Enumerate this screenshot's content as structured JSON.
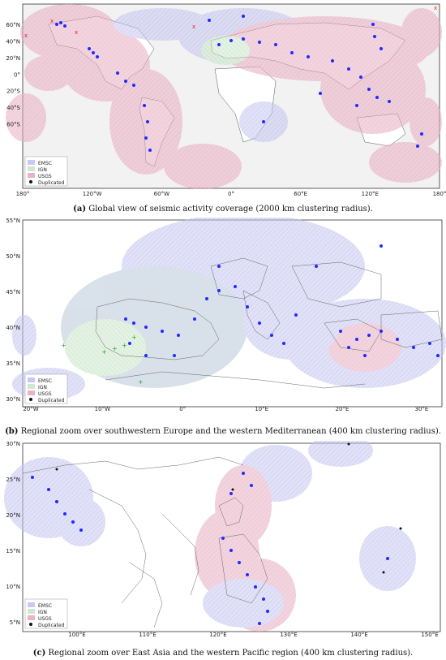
{
  "figure": {
    "panels": [
      {
        "id": "a",
        "caption_prefix": "(a)",
        "caption_text": " Global view of seismic activity coverage (2000 km clustering radius).",
        "xticks": [
          "180°",
          "120°W",
          "60°W",
          "0°",
          "60°E",
          "120°E",
          "180°"
        ],
        "yticks": [
          "60°N",
          "40°N",
          "20°N",
          "0°",
          "20°S",
          "40°S",
          "60°S"
        ],
        "legend": [
          "EMSC",
          "IGN",
          "USGS",
          "Duplicated"
        ]
      },
      {
        "id": "b",
        "caption_prefix": "(b)",
        "caption_text": " Regional zoom over southwestern Europe and the western Mediterranean (400 km clustering radius).",
        "xticks": [
          "20°W",
          "10°W",
          "0°",
          "10°E",
          "20°E",
          "30°E"
        ],
        "yticks": [
          "55°N",
          "50°N",
          "45°N",
          "40°N",
          "35°N",
          "30°N"
        ],
        "legend": [
          "EMSC",
          "IGN",
          "USGS",
          "Duplicated"
        ]
      },
      {
        "id": "c",
        "caption_prefix": "(c)",
        "caption_text": " Regional zoom over East Asia and the western Pacific region (400 km clustering radius).",
        "xticks": [
          "100°E",
          "110°E",
          "120°E",
          "130°E",
          "140°E",
          "150°E"
        ],
        "yticks": [
          "30°N",
          "25°N",
          "20°N",
          "15°N",
          "10°N",
          "5°N"
        ],
        "legend": [
          "EMSC",
          "IGN",
          "USGS",
          "Duplicated"
        ]
      }
    ],
    "colors": {
      "emsc": "#6f6fe6",
      "ign": "#7fc77f",
      "usgs": "#e67f99",
      "event_point": "#1f2bff",
      "ign_marker": "#2ca02c",
      "usgs_marker": "#e8202a",
      "duplicated": "#111111",
      "land": "#ffffff",
      "ocean": "#f2f2f2",
      "border": "#555555"
    }
  }
}
